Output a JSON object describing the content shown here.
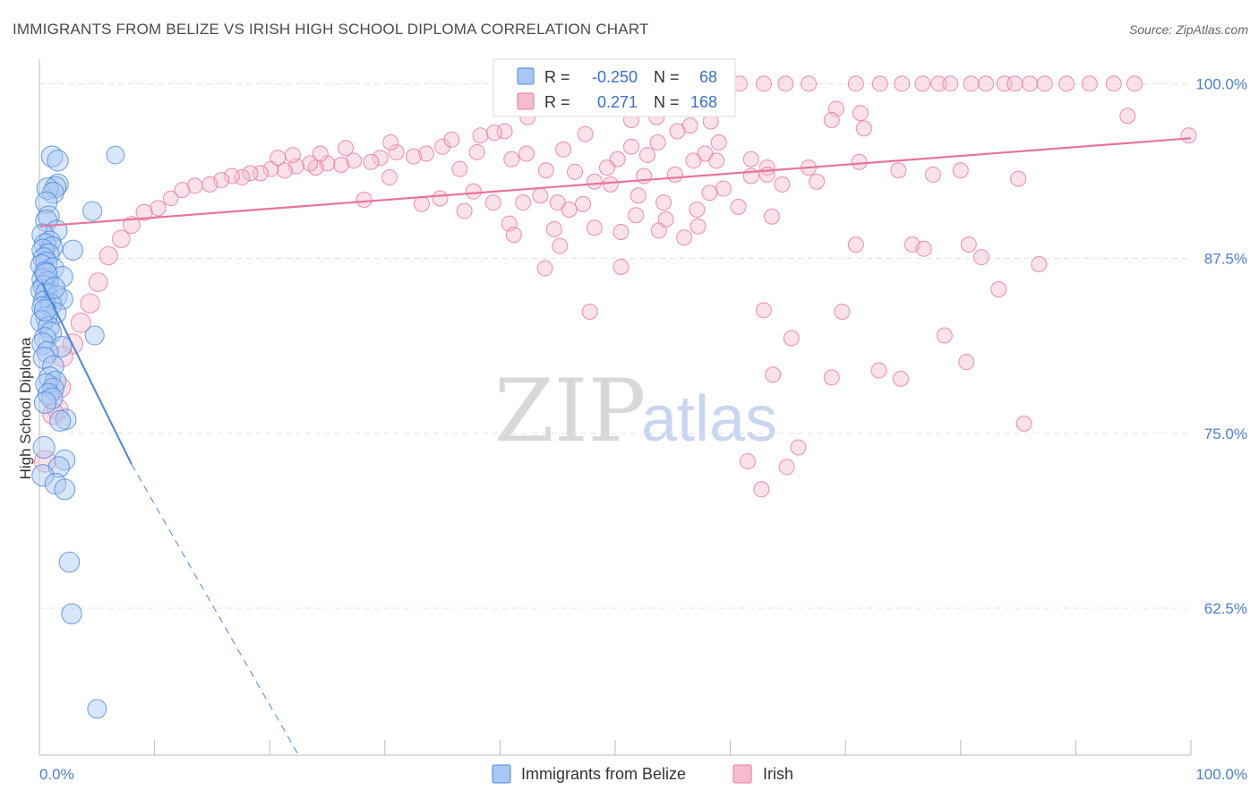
{
  "title": "IMMIGRANTS FROM BELIZE VS IRISH HIGH SCHOOL DIPLOMA CORRELATION CHART",
  "source": "Source: ZipAtlas.com",
  "watermark": {
    "zip": "ZIP",
    "atlas": "atlas"
  },
  "colors": {
    "belize": "#4a86e0",
    "belize_fill": "#a9c7f2",
    "irish": "#e8749c",
    "irish_fill": "#f5bcd0",
    "tick_text": "#4a7fd4"
  },
  "legend_top": {
    "rows": [
      {
        "r_label": "R =",
        "r_value": "-0.250",
        "n_label": "N =",
        "n_value": "68"
      },
      {
        "r_label": "R =",
        "r_value": "0.271",
        "n_label": "N =",
        "n_value": "168"
      }
    ]
  },
  "legend_bottom": [
    "Immigrants from Belize",
    "Irish"
  ],
  "chart_data": {
    "type": "scatter",
    "xlabel": "",
    "ylabel": "High School Diploma",
    "xlim": [
      0,
      100
    ],
    "ylim": [
      52,
      101.5
    ],
    "x_tick_labels": [
      "0.0%",
      "100.0%"
    ],
    "y_ticks": [
      62.5,
      75.0,
      87.5,
      100.0
    ],
    "y_tick_labels": [
      "62.5%",
      "75.0%",
      "87.5%",
      "100.0%"
    ],
    "grid": true,
    "series": [
      {
        "name": "Immigrants from Belize",
        "r": -0.25,
        "n": 68,
        "trend": {
          "x0": 0.2,
          "y0": 85.8,
          "x1": 8.0,
          "y1": 72.8,
          "dash_to_x": 22.5,
          "dash_to_y": 52.0
        },
        "points": [
          [
            1.1,
            94.8
          ],
          [
            1.6,
            94.5
          ],
          [
            6.6,
            94.9
          ],
          [
            1.6,
            92.8
          ],
          [
            1.4,
            92.6
          ],
          [
            0.7,
            92.5
          ],
          [
            1.2,
            92.2
          ],
          [
            0.6,
            91.5
          ],
          [
            4.6,
            90.9
          ],
          [
            0.8,
            90.5
          ],
          [
            0.6,
            90.2
          ],
          [
            1.5,
            89.5
          ],
          [
            0.3,
            89.2
          ],
          [
            0.9,
            88.7
          ],
          [
            0.5,
            88.5
          ],
          [
            1.1,
            88.3
          ],
          [
            0.3,
            88.1
          ],
          [
            2.9,
            88.1
          ],
          [
            0.8,
            87.8
          ],
          [
            0.4,
            87.5
          ],
          [
            0.6,
            87.2
          ],
          [
            0.2,
            87.0
          ],
          [
            1.2,
            86.8
          ],
          [
            0.5,
            86.5
          ],
          [
            2.0,
            86.2
          ],
          [
            0.3,
            86.0
          ],
          [
            0.7,
            85.8
          ],
          [
            0.4,
            85.5
          ],
          [
            0.2,
            85.2
          ],
          [
            0.6,
            85.0
          ],
          [
            1.5,
            84.8
          ],
          [
            2.0,
            84.6
          ],
          [
            0.4,
            84.4
          ],
          [
            1.0,
            84.2
          ],
          [
            0.3,
            84.0
          ],
          [
            1.4,
            83.6
          ],
          [
            0.6,
            83.3
          ],
          [
            0.2,
            83.0
          ],
          [
            0.8,
            82.6
          ],
          [
            1.0,
            82.2
          ],
          [
            4.8,
            82.0
          ],
          [
            0.5,
            81.8
          ],
          [
            0.3,
            81.4
          ],
          [
            1.9,
            81.2
          ],
          [
            0.7,
            80.8
          ],
          [
            0.4,
            80.4
          ],
          [
            1.2,
            79.8
          ],
          [
            0.9,
            79.0
          ],
          [
            1.4,
            78.7
          ],
          [
            0.6,
            78.5
          ],
          [
            1.2,
            78.2
          ],
          [
            0.8,
            77.8
          ],
          [
            1.1,
            77.5
          ],
          [
            0.5,
            77.2
          ],
          [
            2.3,
            76.0
          ],
          [
            1.8,
            75.9
          ],
          [
            0.4,
            74.0
          ],
          [
            2.2,
            73.1
          ],
          [
            1.7,
            72.6
          ],
          [
            0.3,
            72.0
          ],
          [
            1.4,
            71.4
          ],
          [
            2.2,
            71.0
          ],
          [
            2.6,
            65.8
          ],
          [
            2.8,
            62.1
          ],
          [
            5.0,
            55.3
          ],
          [
            0.6,
            86.4
          ],
          [
            1.3,
            85.4
          ],
          [
            0.5,
            83.8
          ]
        ]
      },
      {
        "name": "Irish",
        "r": 0.271,
        "n": 168,
        "trend": {
          "x0": 0.0,
          "y0": 89.8,
          "x1": 100.0,
          "y1": 96.1
        },
        "points": [
          [
            60.8,
            100.0
          ],
          [
            62.9,
            100.0
          ],
          [
            64.8,
            100.0
          ],
          [
            66.8,
            100.0
          ],
          [
            70.9,
            100.0
          ],
          [
            73.0,
            100.0
          ],
          [
            74.9,
            100.0
          ],
          [
            76.7,
            100.0
          ],
          [
            78.1,
            100.0
          ],
          [
            79.1,
            100.0
          ],
          [
            80.9,
            100.0
          ],
          [
            82.2,
            100.0
          ],
          [
            83.8,
            100.0
          ],
          [
            84.7,
            100.0
          ],
          [
            86.0,
            100.0
          ],
          [
            87.3,
            100.0
          ],
          [
            89.2,
            100.0
          ],
          [
            91.2,
            100.0
          ],
          [
            93.3,
            100.0
          ],
          [
            95.1,
            100.0
          ],
          [
            57.6,
            100.0
          ],
          [
            55.4,
            100.0
          ],
          [
            99.8,
            96.3
          ],
          [
            94.5,
            97.7
          ],
          [
            69.2,
            98.2
          ],
          [
            71.3,
            97.9
          ],
          [
            68.8,
            97.4
          ],
          [
            71.6,
            96.8
          ],
          [
            53.6,
            97.6
          ],
          [
            51.4,
            97.4
          ],
          [
            58.3,
            97.3
          ],
          [
            56.5,
            97.0
          ],
          [
            55.4,
            96.6
          ],
          [
            42.4,
            97.6
          ],
          [
            47.4,
            96.4
          ],
          [
            40.4,
            96.6
          ],
          [
            38.3,
            96.3
          ],
          [
            53.7,
            95.8
          ],
          [
            59.0,
            95.8
          ],
          [
            51.4,
            95.5
          ],
          [
            57.8,
            95.0
          ],
          [
            61.8,
            94.6
          ],
          [
            71.2,
            94.4
          ],
          [
            63.2,
            94.0
          ],
          [
            66.8,
            94.0
          ],
          [
            56.8,
            94.5
          ],
          [
            52.8,
            94.9
          ],
          [
            50.2,
            94.6
          ],
          [
            45.5,
            95.3
          ],
          [
            42.3,
            95.0
          ],
          [
            41.0,
            94.6
          ],
          [
            38.0,
            95.1
          ],
          [
            35.0,
            95.5
          ],
          [
            33.6,
            95.0
          ],
          [
            32.5,
            94.8
          ],
          [
            31.0,
            95.1
          ],
          [
            29.6,
            94.7
          ],
          [
            28.8,
            94.4
          ],
          [
            27.3,
            94.5
          ],
          [
            26.2,
            94.2
          ],
          [
            25.0,
            94.3
          ],
          [
            24.0,
            94.0
          ],
          [
            23.5,
            94.3
          ],
          [
            22.3,
            94.1
          ],
          [
            21.3,
            93.8
          ],
          [
            20.1,
            93.9
          ],
          [
            19.2,
            93.6
          ],
          [
            18.3,
            93.6
          ],
          [
            17.6,
            93.3
          ],
          [
            16.7,
            93.4
          ],
          [
            15.8,
            93.1
          ],
          [
            14.8,
            92.8
          ],
          [
            13.5,
            92.7
          ],
          [
            12.4,
            92.4
          ],
          [
            11.4,
            91.8
          ],
          [
            10.3,
            91.1
          ],
          [
            9.1,
            90.8
          ],
          [
            8.0,
            89.9
          ],
          [
            7.1,
            88.9
          ],
          [
            6.0,
            87.7
          ],
          [
            5.1,
            85.8
          ],
          [
            4.4,
            84.3
          ],
          [
            3.6,
            82.9
          ],
          [
            2.9,
            81.4
          ],
          [
            2.0,
            80.5
          ],
          [
            1.8,
            78.3
          ],
          [
            1.6,
            76.7
          ],
          [
            1.2,
            76.4
          ],
          [
            0.5,
            73.0
          ],
          [
            44.0,
            93.8
          ],
          [
            46.5,
            93.7
          ],
          [
            48.2,
            93.0
          ],
          [
            49.6,
            92.8
          ],
          [
            52.0,
            92.0
          ],
          [
            47.2,
            91.4
          ],
          [
            54.2,
            91.5
          ],
          [
            57.1,
            91.0
          ],
          [
            61.8,
            93.4
          ],
          [
            42.0,
            91.5
          ],
          [
            39.4,
            91.5
          ],
          [
            45.0,
            91.5
          ],
          [
            43.5,
            92.0
          ],
          [
            36.5,
            93.9
          ],
          [
            37.7,
            92.3
          ],
          [
            34.8,
            91.8
          ],
          [
            30.4,
            93.3
          ],
          [
            28.2,
            91.7
          ],
          [
            33.2,
            91.4
          ],
          [
            36.9,
            90.9
          ],
          [
            48.2,
            89.7
          ],
          [
            53.8,
            89.5
          ],
          [
            50.5,
            89.4
          ],
          [
            56.0,
            89.0
          ],
          [
            63.6,
            90.5
          ],
          [
            70.9,
            88.5
          ],
          [
            75.8,
            88.5
          ],
          [
            80.7,
            88.5
          ],
          [
            86.8,
            87.1
          ],
          [
            83.3,
            85.3
          ],
          [
            81.8,
            87.6
          ],
          [
            76.8,
            88.2
          ],
          [
            69.7,
            83.7
          ],
          [
            78.6,
            82.0
          ],
          [
            68.8,
            79.0
          ],
          [
            74.8,
            78.9
          ],
          [
            72.9,
            79.5
          ],
          [
            80.5,
            80.1
          ],
          [
            62.9,
            83.8
          ],
          [
            65.3,
            81.8
          ],
          [
            63.7,
            79.2
          ],
          [
            85.5,
            75.7
          ],
          [
            61.5,
            73.0
          ],
          [
            64.9,
            72.6
          ],
          [
            50.5,
            86.9
          ],
          [
            43.9,
            86.8
          ],
          [
            47.8,
            83.7
          ],
          [
            65.9,
            74.0
          ],
          [
            62.7,
            71.0
          ],
          [
            58.8,
            94.5
          ],
          [
            63.2,
            93.5
          ],
          [
            74.6,
            93.8
          ],
          [
            77.6,
            93.5
          ],
          [
            80.0,
            93.8
          ],
          [
            85.0,
            93.2
          ],
          [
            64.5,
            92.8
          ],
          [
            55.2,
            93.5
          ],
          [
            59.4,
            92.5
          ],
          [
            67.5,
            93.0
          ],
          [
            39.5,
            96.5
          ],
          [
            30.5,
            95.8
          ],
          [
            26.6,
            95.4
          ],
          [
            35.8,
            96.0
          ],
          [
            24.4,
            95.0
          ],
          [
            22.0,
            94.9
          ],
          [
            20.7,
            94.7
          ],
          [
            49.3,
            94.0
          ],
          [
            52.5,
            93.4
          ],
          [
            58.2,
            92.2
          ],
          [
            60.7,
            91.2
          ],
          [
            46.0,
            91.0
          ],
          [
            40.8,
            90.0
          ],
          [
            44.7,
            89.6
          ],
          [
            51.8,
            90.6
          ],
          [
            54.4,
            90.3
          ],
          [
            57.2,
            89.8
          ],
          [
            41.2,
            89.2
          ],
          [
            45.2,
            88.4
          ]
        ]
      }
    ]
  }
}
